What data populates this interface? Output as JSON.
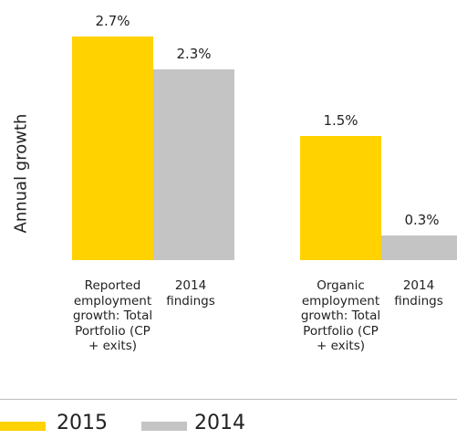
{
  "chart_data": {
    "type": "bar",
    "y_label": "Annual growth",
    "categories": [
      "Reported employment growth: Total Portfolio (CP + exits)",
      "Organic employment growth: Total Portfolio (CP + exits)"
    ],
    "secondary_labels": [
      "2014 findings",
      "2014 findings"
    ],
    "series": [
      {
        "name": "2015",
        "color": "#ffd200",
        "values": [
          2.7,
          1.5
        ],
        "value_labels": [
          "2.7%",
          "1.5%"
        ]
      },
      {
        "name": "2014",
        "color": "#c4c4c4",
        "values": [
          2.3,
          0.3
        ],
        "value_labels": [
          "2.3%",
          "0.3%"
        ]
      }
    ],
    "ylim": [
      0,
      2.7
    ],
    "grid": false,
    "legend": "bottom"
  }
}
